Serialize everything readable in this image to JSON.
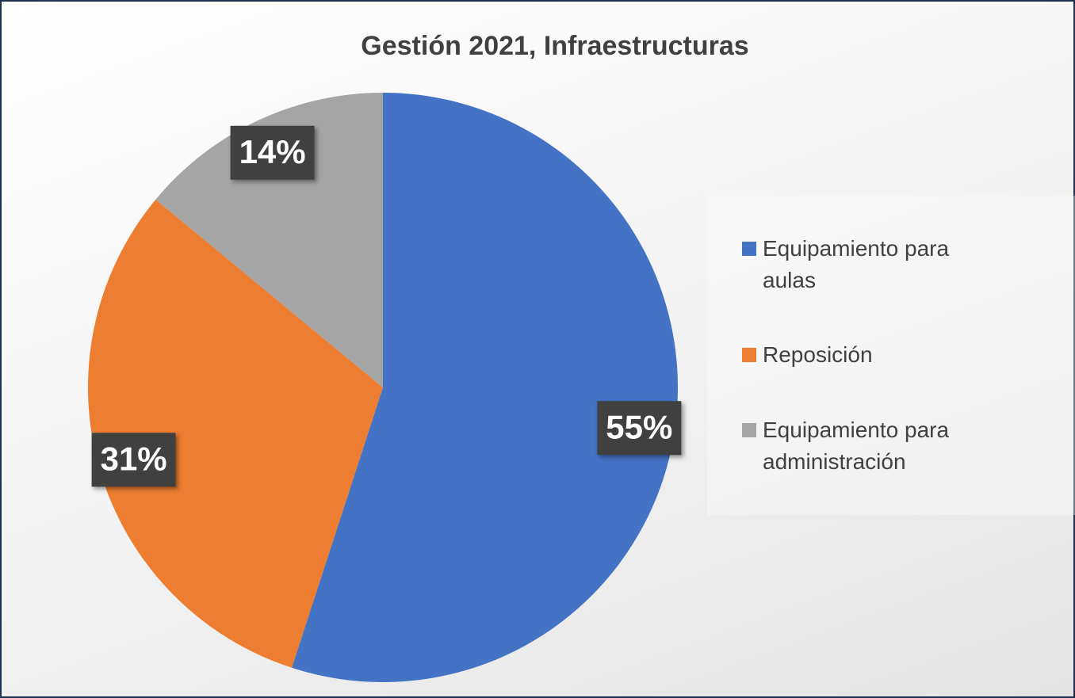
{
  "chart_data": {
    "type": "pie",
    "title": "Gestión 2021, Infraestructuras",
    "categories": [
      "Equipamiento para aulas",
      "Reposición",
      "Equipamiento para administración"
    ],
    "values": [
      55,
      31,
      14
    ],
    "value_labels": [
      "55%",
      "31%",
      "14%"
    ],
    "colors": [
      "#4472c4",
      "#ed7d31",
      "#a5a5a5"
    ],
    "legend": "right"
  }
}
